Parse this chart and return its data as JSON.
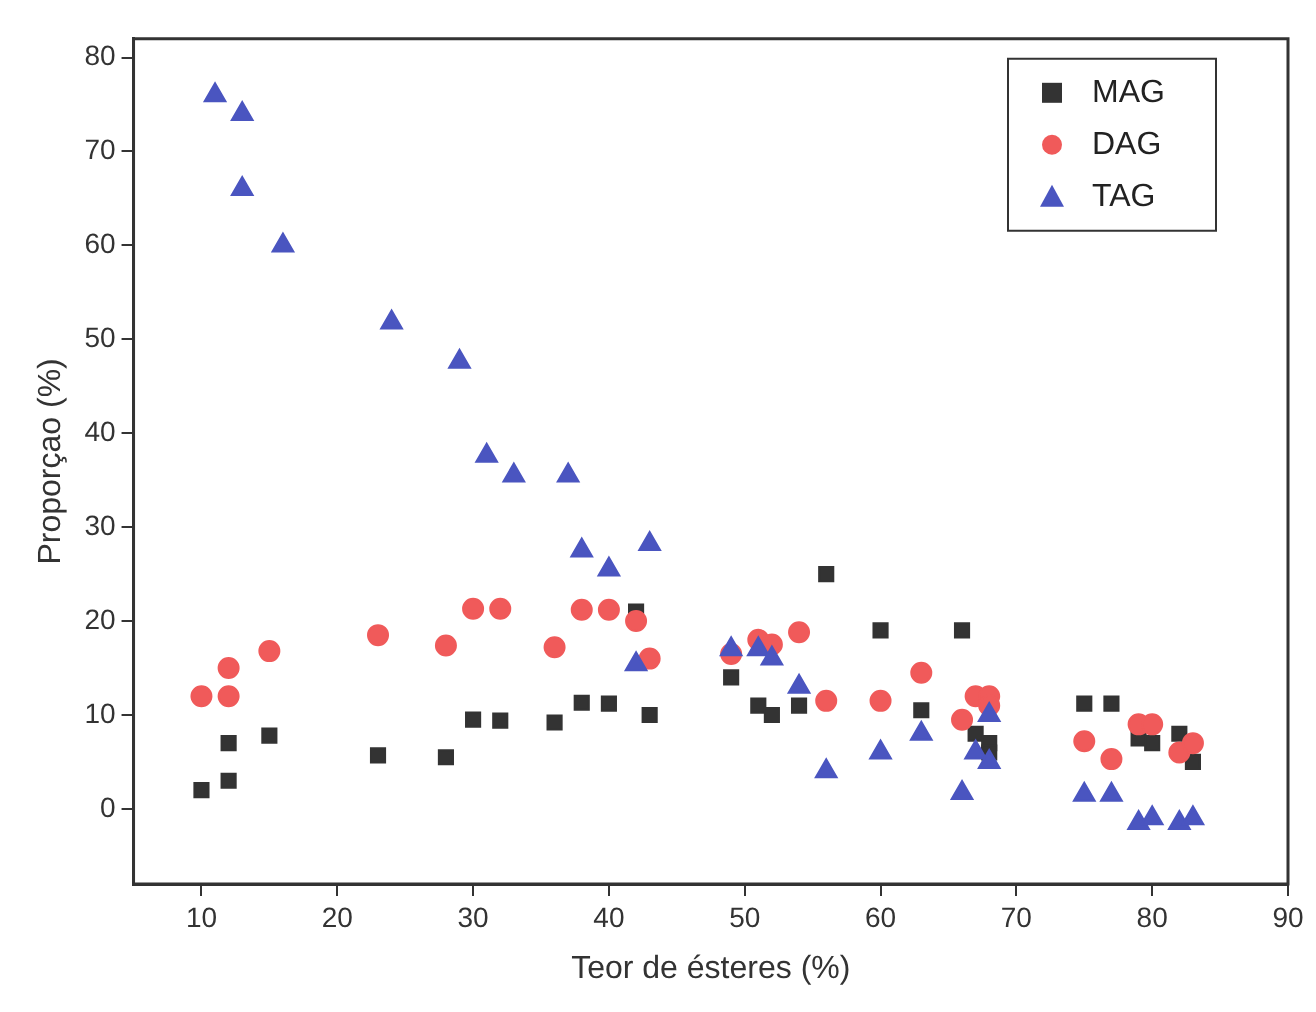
{
  "chart_data": {
    "type": "scatter",
    "xlabel": "Teor de ésteres (%)",
    "ylabel": "Proporçao (%)",
    "xlim": [
      5,
      90
    ],
    "ylim": [
      -8,
      82
    ],
    "xticks": [
      10,
      20,
      30,
      40,
      50,
      60,
      70,
      80,
      90
    ],
    "yticks": [
      0,
      10,
      20,
      30,
      40,
      50,
      60,
      70,
      80
    ],
    "grid": false,
    "legend": "top right",
    "series": [
      {
        "name": "MAG",
        "color": "#333333",
        "marker": "square",
        "x": [
          10,
          12,
          12,
          15,
          23,
          28,
          30,
          32,
          36,
          38,
          40,
          42,
          43,
          49,
          51,
          52,
          54,
          56,
          60,
          63,
          66,
          67,
          68,
          68,
          75,
          77,
          79,
          80,
          82,
          83
        ],
        "values": [
          2,
          3,
          7,
          7.8,
          5.7,
          5.5,
          9.5,
          9.4,
          9.2,
          11.3,
          11.2,
          21,
          10,
          14,
          11,
          10,
          11,
          25,
          19,
          10.5,
          19,
          8,
          7,
          6,
          11.2,
          11.2,
          7.5,
          7,
          8,
          5
        ]
      },
      {
        "name": "DAG",
        "color": "#f05a5a",
        "marker": "circle",
        "x": [
          10,
          12,
          12,
          15,
          23,
          28,
          30,
          32,
          36,
          38,
          40,
          42,
          43,
          49,
          51,
          52,
          54,
          56,
          60,
          63,
          66,
          67,
          68,
          68,
          75,
          77,
          79,
          80,
          82,
          83
        ],
        "values": [
          12,
          12,
          15,
          16.8,
          18.5,
          17.4,
          21.3,
          21.3,
          17.2,
          21.2,
          21.2,
          20,
          16,
          16.5,
          18,
          17.5,
          18.8,
          11.5,
          11.5,
          14.5,
          9.5,
          12,
          12,
          11,
          7.2,
          5.3,
          9,
          9,
          6,
          7
        ]
      },
      {
        "name": "TAG",
        "color": "#4a55c0",
        "marker": "triangle",
        "x": [
          11,
          13,
          13,
          16,
          24,
          29,
          31,
          33,
          37,
          38,
          40,
          42,
          43,
          49,
          51,
          52,
          54,
          56,
          60,
          63,
          66,
          67,
          68,
          68,
          75,
          77,
          79,
          80,
          82,
          83
        ],
        "values": [
          76,
          74,
          66,
          60,
          51.8,
          47.6,
          37.6,
          35.5,
          35.5,
          27.5,
          25.5,
          15.4,
          28.2,
          17,
          17,
          16,
          13,
          4,
          6,
          8,
          1.7,
          6,
          5,
          10,
          1.5,
          1.5,
          -1.5,
          -1,
          -1.5,
          -1
        ]
      }
    ]
  }
}
